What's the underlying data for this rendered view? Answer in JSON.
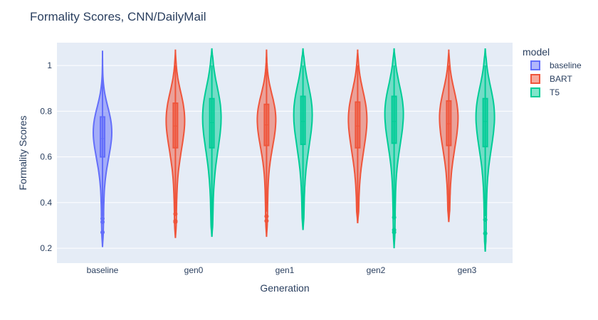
{
  "chart_data": {
    "type": "violin",
    "title": "Formality Scores, CNN/DailyMail",
    "xlabel": "Generation",
    "ylabel": "Formality Scores",
    "categories": [
      "baseline",
      "gen0",
      "gen1",
      "gen2",
      "gen3"
    ],
    "yticks": [
      0.2,
      0.4,
      0.6,
      0.8,
      1
    ],
    "ylim": [
      0.135,
      1.1
    ],
    "grid": true,
    "legend": {
      "title": "model",
      "position": "right"
    },
    "series": [
      {
        "name": "baseline",
        "color": "#636efa",
        "violins": [
          {
            "category": "baseline",
            "min": 0.205,
            "max": 1.065,
            "q1": 0.6,
            "median": 0.68,
            "q3": 0.775,
            "whisker_low": 0.34,
            "whisker_high": 0.99,
            "outliers": [
              0.33,
              0.315,
              0.27
            ]
          }
        ]
      },
      {
        "name": "BART",
        "color": "#ef553b",
        "violins": [
          {
            "category": "gen0",
            "min": 0.245,
            "max": 1.07,
            "q1": 0.64,
            "median": 0.735,
            "q3": 0.835,
            "whisker_low": 0.36,
            "whisker_high": 1.0,
            "outliers": [
              0.35,
              0.32,
              0.315
            ]
          },
          {
            "category": "gen1",
            "min": 0.25,
            "max": 1.07,
            "q1": 0.65,
            "median": 0.74,
            "q3": 0.83,
            "whisker_low": 0.36,
            "whisker_high": 1.0,
            "outliers": [
              0.34,
              0.32
            ]
          },
          {
            "category": "gen2",
            "min": 0.31,
            "max": 1.07,
            "q1": 0.64,
            "median": 0.735,
            "q3": 0.84,
            "whisker_low": 0.31,
            "whisker_high": 1.0,
            "outliers": []
          },
          {
            "category": "gen3",
            "min": 0.315,
            "max": 1.07,
            "q1": 0.65,
            "median": 0.745,
            "q3": 0.845,
            "whisker_low": 0.315,
            "whisker_high": 1.0,
            "outliers": []
          }
        ]
      },
      {
        "name": "T5",
        "color": "#00cc96",
        "violins": [
          {
            "category": "gen0",
            "min": 0.25,
            "max": 1.075,
            "q1": 0.64,
            "median": 0.75,
            "q3": 0.855,
            "whisker_low": 0.25,
            "whisker_high": 1.0,
            "outliers": []
          },
          {
            "category": "gen1",
            "min": 0.28,
            "max": 1.075,
            "q1": 0.655,
            "median": 0.755,
            "q3": 0.865,
            "whisker_low": 0.28,
            "whisker_high": 1.0,
            "outliers": []
          },
          {
            "category": "gen2",
            "min": 0.2,
            "max": 1.075,
            "q1": 0.66,
            "median": 0.755,
            "q3": 0.865,
            "whisker_low": 0.34,
            "whisker_high": 1.0,
            "outliers": [
              0.335,
              0.28,
              0.27
            ]
          },
          {
            "category": "gen3",
            "min": 0.185,
            "max": 1.075,
            "q1": 0.645,
            "median": 0.755,
            "q3": 0.855,
            "whisker_low": 0.34,
            "whisker_high": 1.0,
            "outliers": [
              0.325,
              0.265
            ]
          }
        ]
      }
    ]
  }
}
